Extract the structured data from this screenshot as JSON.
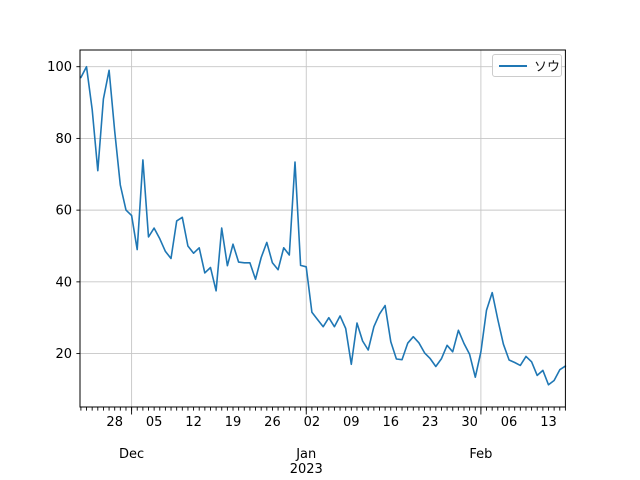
{
  "legend": {
    "label": "ソウ"
  },
  "colors": {
    "line": "#1f77b4",
    "grid": "#c6c6c6",
    "spine": "#000000",
    "background": "#ffffff"
  },
  "chart_data": {
    "type": "line",
    "title": "",
    "xlabel": "",
    "ylabel": "",
    "x_unit": "day",
    "x_start_date": "2022-11-22",
    "x_end_date": "2023-02-16",
    "series": [
      {
        "name": "ソウ",
        "color": "#1f77b4",
        "values": [
          97,
          100,
          88,
          71,
          91,
          99,
          82,
          67,
          60,
          58.5,
          49,
          74,
          52.5,
          55,
          52,
          48.5,
          46.5,
          57,
          58,
          50,
          48,
          49.5,
          42.5,
          44,
          37.5,
          55,
          44.5,
          50.5,
          45.5,
          45.3,
          45.3,
          40.7,
          46.8,
          51,
          45.3,
          43.4,
          49.5,
          47.5,
          73.4,
          44.6,
          44.2,
          31.5,
          29.5,
          27.5,
          30,
          27.5,
          30.5,
          27,
          17,
          28.5,
          23.5,
          21,
          27.5,
          31,
          33.4,
          23.3,
          18.5,
          18.3,
          22.9,
          24.7,
          23,
          20.2,
          18.6,
          16.4,
          18.6,
          22.3,
          20.5,
          26.5,
          22.8,
          19.8,
          13.4,
          20.5,
          32.1,
          37,
          29.5,
          22.6,
          18.2,
          17.5,
          16.7,
          19.2,
          17.7,
          13.9,
          15.3,
          11.3,
          12.5,
          15.5,
          16.5
        ]
      }
    ],
    "ylim": [
      5,
      104.7
    ],
    "y_ticks": [
      20,
      40,
      60,
      80,
      100
    ],
    "y_tick_labels": [
      "20",
      "40",
      "60",
      "80",
      "100"
    ],
    "x_week_ticks": [
      {
        "label": "28",
        "day_index": 6
      },
      {
        "label": "05",
        "day_index": 13
      },
      {
        "label": "12",
        "day_index": 20
      },
      {
        "label": "19",
        "day_index": 27
      },
      {
        "label": "26",
        "day_index": 34
      },
      {
        "label": "02",
        "day_index": 41
      },
      {
        "label": "09",
        "day_index": 48
      },
      {
        "label": "16",
        "day_index": 55
      },
      {
        "label": "23",
        "day_index": 62
      },
      {
        "label": "30",
        "day_index": 69
      },
      {
        "label": "06",
        "day_index": 76
      },
      {
        "label": "13",
        "day_index": 83
      }
    ],
    "x_month_ticks": [
      {
        "label": "Dec",
        "day_index": 9,
        "year_label": ""
      },
      {
        "label": "Jan",
        "day_index": 40,
        "year_label": "2023"
      },
      {
        "label": "Feb",
        "day_index": 71,
        "year_label": ""
      }
    ],
    "n_days": 87,
    "grid": true,
    "legend_position": "upper right"
  }
}
